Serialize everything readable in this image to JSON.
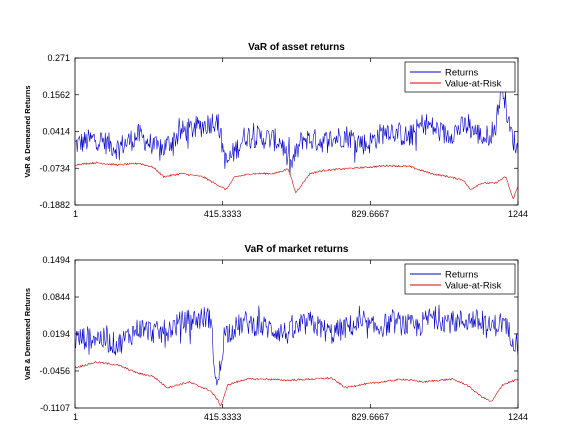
{
  "chart_data": [
    {
      "type": "line",
      "title": "VaR of asset returns",
      "xlabel": "",
      "ylabel": "VaR & Demeaned Returns",
      "xlim": [
        1,
        1244
      ],
      "ylim": [
        -0.1882,
        0.271
      ],
      "xticks": [
        1,
        415.3333,
        829.6667,
        1244
      ],
      "xtick_labels": [
        "1",
        "415.3333",
        "829.6667",
        "1244"
      ],
      "yticks": [
        -0.1882,
        -0.0734,
        0.0414,
        0.1562,
        0.271
      ],
      "ytick_labels": [
        "-0.1882",
        "-0.0734",
        "0.0414",
        "0.1562",
        "0.271"
      ],
      "legend_position": "top-right",
      "grid": false,
      "series": [
        {
          "name": "Returns",
          "color": "#0000cc",
          "x": [
            1,
            60,
            120,
            180,
            240,
            300,
            360,
            400,
            425,
            480,
            540,
            580,
            605,
            640,
            700,
            760,
            820,
            880,
            940,
            980,
            1040,
            1100,
            1150,
            1180,
            1200,
            1220,
            1244
          ],
          "y": [
            0.0,
            0.02,
            -0.01,
            0.03,
            -0.02,
            0.04,
            0.06,
            0.08,
            -0.06,
            0.03,
            0.02,
            0.01,
            -0.07,
            0.02,
            0.01,
            0.03,
            0.0,
            0.05,
            0.02,
            0.07,
            0.03,
            0.06,
            0.02,
            0.05,
            0.2,
            0.05,
            -0.02
          ]
        },
        {
          "name": "Value-at-Risk",
          "color": "#dd0000",
          "x": [
            1,
            60,
            120,
            180,
            220,
            250,
            300,
            360,
            400,
            425,
            450,
            500,
            560,
            600,
            620,
            660,
            700,
            760,
            820,
            880,
            940,
            1000,
            1050,
            1090,
            1110,
            1140,
            1180,
            1210,
            1230,
            1244
          ],
          "y": [
            -0.062,
            -0.056,
            -0.063,
            -0.058,
            -0.07,
            -0.1,
            -0.09,
            -0.1,
            -0.125,
            -0.14,
            -0.1,
            -0.09,
            -0.09,
            -0.075,
            -0.15,
            -0.09,
            -0.08,
            -0.075,
            -0.07,
            -0.065,
            -0.068,
            -0.09,
            -0.1,
            -0.11,
            -0.14,
            -0.12,
            -0.12,
            -0.1,
            -0.17,
            -0.13
          ]
        }
      ]
    },
    {
      "type": "line",
      "title": "VaR of market returns",
      "xlabel": "",
      "ylabel": "VaR & Demeaned Returns",
      "xlim": [
        1,
        1244
      ],
      "ylim": [
        -0.1107,
        0.1494
      ],
      "xticks": [
        1,
        415.3333,
        829.6667,
        1244
      ],
      "xtick_labels": [
        "1",
        "415.3333",
        "829.6667",
        "1244"
      ],
      "yticks": [
        -0.1107,
        -0.0456,
        0.0194,
        0.0844,
        0.1494
      ],
      "ytick_labels": [
        "-0.1107",
        "-0.0456",
        "0.0194",
        "0.0844",
        "0.1494"
      ],
      "legend_position": "top-right",
      "grid": false,
      "series": [
        {
          "name": "Returns",
          "color": "#0000cc",
          "x": [
            1,
            60,
            120,
            180,
            240,
            300,
            340,
            380,
            400,
            420,
            480,
            540,
            600,
            660,
            720,
            780,
            840,
            900,
            960,
            1000,
            1060,
            1120,
            1160,
            1200,
            1244
          ],
          "y": [
            0.01,
            0.015,
            0.0,
            0.03,
            0.02,
            0.04,
            0.045,
            0.05,
            -0.08,
            0.02,
            0.04,
            0.03,
            0.02,
            0.04,
            0.02,
            0.035,
            0.03,
            0.04,
            0.03,
            0.05,
            0.04,
            0.045,
            0.03,
            0.04,
            0.0
          ]
        },
        {
          "name": "Value-at-Risk",
          "color": "#dd0000",
          "x": [
            1,
            60,
            120,
            180,
            220,
            260,
            320,
            380,
            400,
            410,
            430,
            480,
            540,
            600,
            660,
            720,
            760,
            800,
            860,
            920,
            980,
            1020,
            1060,
            1100,
            1140,
            1170,
            1200,
            1244
          ],
          "y": [
            -0.04,
            -0.03,
            -0.035,
            -0.05,
            -0.055,
            -0.075,
            -0.065,
            -0.08,
            -0.095,
            -0.107,
            -0.07,
            -0.06,
            -0.06,
            -0.062,
            -0.06,
            -0.058,
            -0.075,
            -0.07,
            -0.065,
            -0.06,
            -0.065,
            -0.062,
            -0.06,
            -0.07,
            -0.09,
            -0.1,
            -0.07,
            -0.06
          ]
        }
      ]
    }
  ]
}
